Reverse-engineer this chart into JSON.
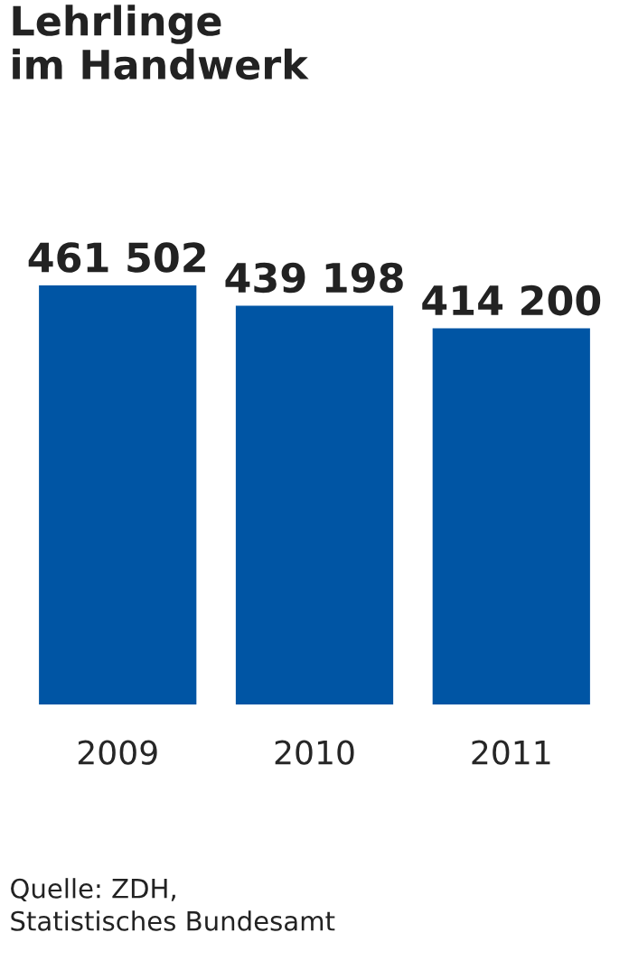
{
  "chart_data": {
    "type": "bar",
    "title": "Lehrlinge\nim Handwerk",
    "categories": [
      "2009",
      "2010",
      "2011"
    ],
    "values": [
      461502,
      439198,
      414200
    ],
    "value_labels": [
      "461 502",
      "439 198",
      "414 200"
    ],
    "color": "#0055a4",
    "grid": false,
    "legend": false,
    "annotations": [
      "Quelle: ZDH,\nStatistisches Bundesamt"
    ]
  }
}
